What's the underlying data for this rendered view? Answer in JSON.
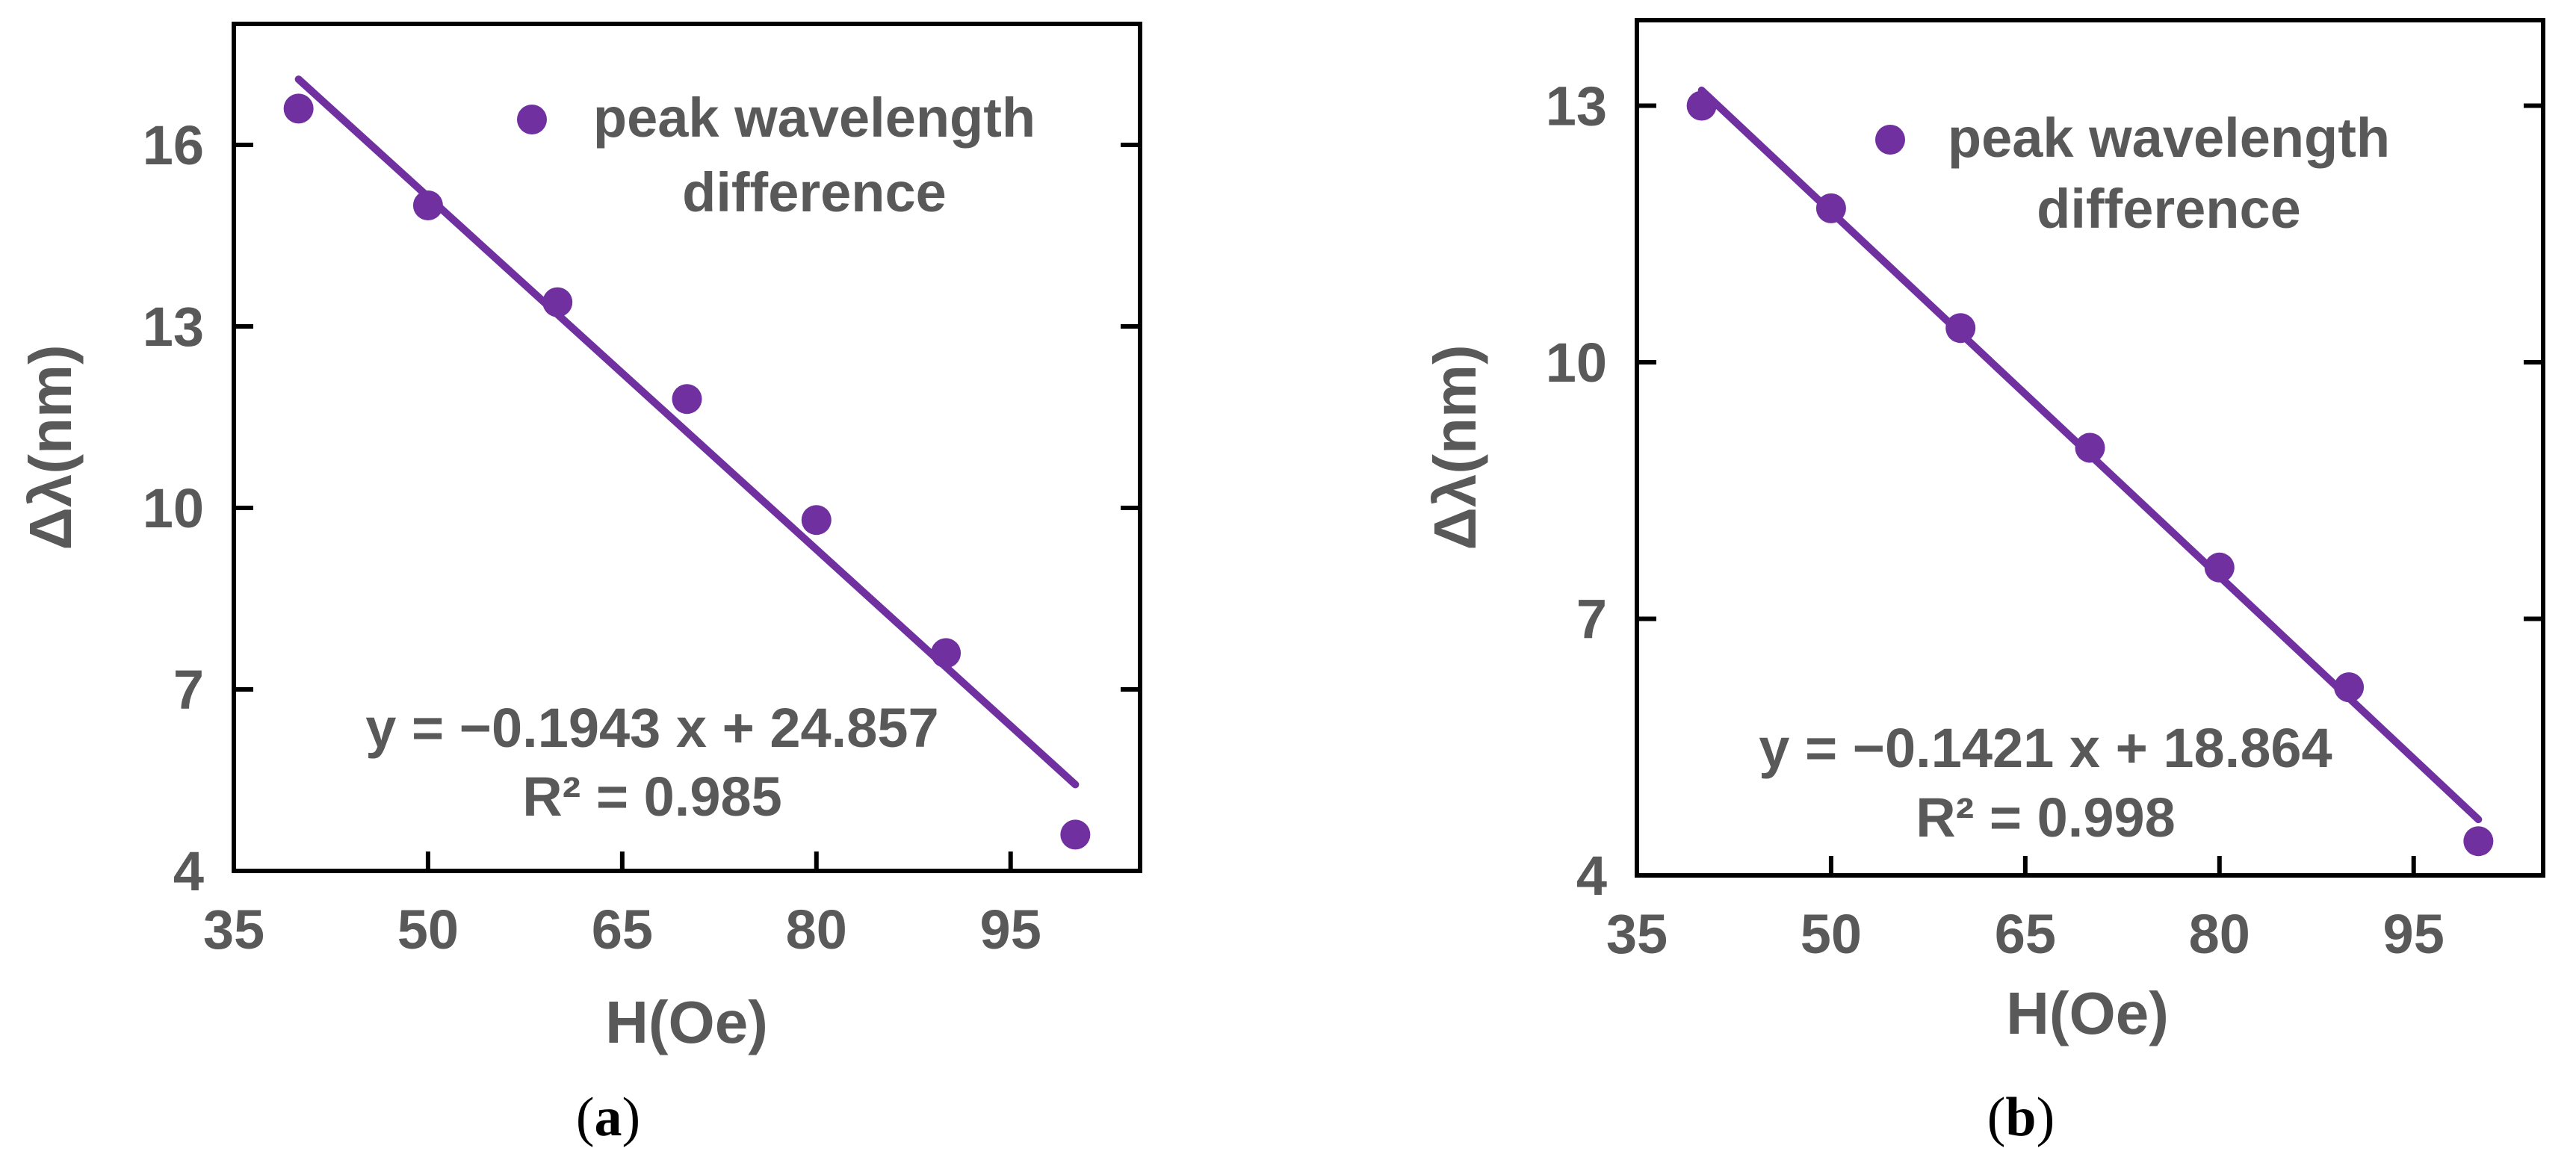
{
  "colors": {
    "series": "#7030a0",
    "text": "#595959",
    "axis": "#000000"
  },
  "chart_data": [
    {
      "type": "scatter",
      "caption_letter": "a",
      "xlabel": "H(Oe)",
      "ylabel": "Δλ(nm)",
      "xlim": [
        35,
        105
      ],
      "ylim": [
        4,
        18
      ],
      "xticks": [
        35,
        50,
        65,
        80,
        95
      ],
      "yticks": [
        4,
        7,
        10,
        13,
        16
      ],
      "grid": false,
      "legend": {
        "label_line1": "peak wavelength",
        "label_line2": "difference",
        "position": "top-right"
      },
      "series": [
        {
          "name": "peak wavelength difference",
          "x": [
            40,
            50,
            60,
            70,
            80,
            90,
            100
          ],
          "y": [
            16.6,
            15.0,
            13.4,
            11.8,
            9.8,
            7.6,
            4.6
          ]
        }
      ],
      "fit": {
        "slope": -0.1943,
        "intercept": 24.857,
        "x_range": [
          40,
          100
        ]
      },
      "equation_text": "y = −0.1943 x + 24.857",
      "r2_text": "R² = 0.985"
    },
    {
      "type": "scatter",
      "caption_letter": "b",
      "xlabel": "H(Oe)",
      "ylabel": "Δλ(nm)",
      "xlim": [
        35,
        105
      ],
      "ylim": [
        4,
        14
      ],
      "xticks": [
        35,
        50,
        65,
        80,
        95
      ],
      "yticks": [
        4,
        7,
        10,
        13
      ],
      "grid": false,
      "legend": {
        "label_line1": "peak wavelength",
        "label_line2": "difference",
        "position": "top-right"
      },
      "series": [
        {
          "name": "peak wavelength difference",
          "x": [
            40,
            50,
            60,
            70,
            80,
            90,
            100
          ],
          "y": [
            13.0,
            11.8,
            10.4,
            9.0,
            7.6,
            6.2,
            4.4
          ]
        }
      ],
      "fit": {
        "slope": -0.1421,
        "intercept": 18.864,
        "x_range": [
          40,
          100
        ]
      },
      "equation_text": "y = −0.1421 x + 18.864",
      "r2_text": "R² = 0.998"
    }
  ]
}
